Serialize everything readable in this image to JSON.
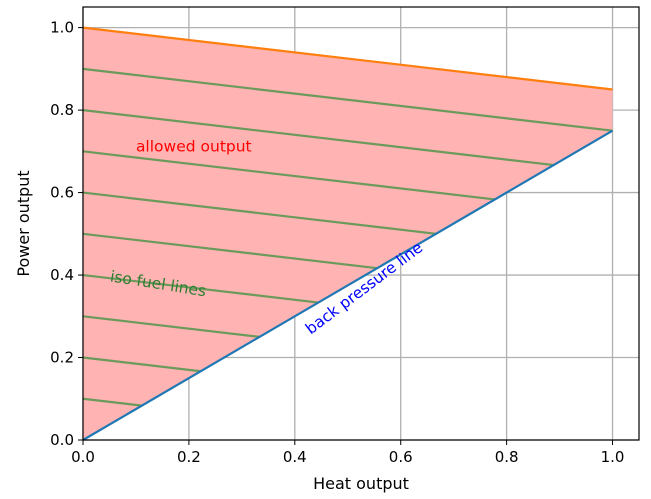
{
  "chart_data": {
    "type": "line",
    "xlabel": "Heat output",
    "ylabel": "Power output",
    "xlim": [
      0.0,
      1.05
    ],
    "ylim": [
      0.0,
      1.05
    ],
    "grid": true,
    "x_ticks": [
      "0.0",
      "0.2",
      "0.4",
      "0.6",
      "0.8",
      "1.0"
    ],
    "y_ticks": [
      "0.0",
      "0.2",
      "0.4",
      "0.6",
      "0.8",
      "1.0"
    ],
    "x_tick_values": [
      0.0,
      0.2,
      0.4,
      0.6,
      0.8,
      1.0
    ],
    "y_tick_values": [
      0.0,
      0.2,
      0.4,
      0.6,
      0.8,
      1.0
    ],
    "allowed_region": {
      "points": [
        [
          0.0,
          0.0
        ],
        [
          0.0,
          1.0
        ],
        [
          1.0,
          0.85
        ],
        [
          1.0,
          0.75
        ]
      ],
      "color": "#ffb3b3"
    },
    "series": [
      {
        "x": [
          0.0,
          1.0
        ],
        "y": [
          1.0,
          0.85
        ],
        "color": "#ff7f0e"
      },
      {
        "x": [
          0.0,
          1.0
        ],
        "y": [
          0.0,
          0.75
        ],
        "color": "#1f77b4"
      }
    ],
    "iso_fuel_lines": {
      "color": "#6b9a5b",
      "slope": -0.15,
      "intercepts": [
        0.1,
        0.2,
        0.3,
        0.4,
        0.5,
        0.6,
        0.7,
        0.8,
        0.9
      ]
    },
    "annotations": [
      {
        "text": "allowed output",
        "x": 0.1,
        "y": 0.7,
        "rotation": 0,
        "color": "#ff0000"
      },
      {
        "text": "iso fuel lines",
        "x": 0.05,
        "y": 0.385,
        "rotation": 9,
        "color": "#2e7d32"
      },
      {
        "text": "back pressure line",
        "x": 0.43,
        "y": 0.255,
        "rotation": -37,
        "color": "#0000ff"
      }
    ]
  }
}
